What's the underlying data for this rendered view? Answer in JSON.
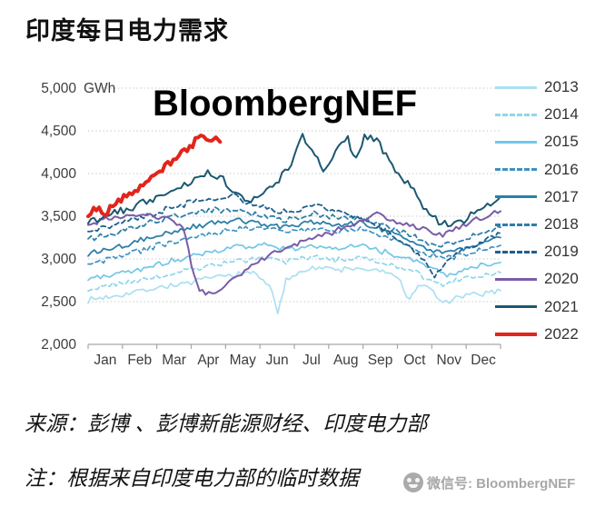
{
  "page": {
    "title": "印度每日电力需求",
    "chart_watermark": "BloombergNEF",
    "source_line": "来源：彭博 、彭博新能源财经、印度电力部",
    "note_line": "注：根据来自印度电力部的临时数据",
    "wechat_watermark": "微信号: BloombergNEF"
  },
  "colors": {
    "accent_red": "#e1251b",
    "grid": "#c9c9c9",
    "axis": "#a6a6a6",
    "title_text": "#111111",
    "tick_text": "#3d3d3d",
    "legend_text": "#333333",
    "watermark_gray": "#9b9b9b"
  },
  "chart_data": {
    "type": "line",
    "title": "印度每日电力需求",
    "unit": "GWh",
    "ylim": [
      2000,
      5000
    ],
    "yticks": [
      {
        "value": 5000,
        "label": "5,000"
      },
      {
        "value": 4500,
        "label": "4,500"
      },
      {
        "value": 4000,
        "label": "4,000"
      },
      {
        "value": 3500,
        "label": "3,500"
      },
      {
        "value": 3000,
        "label": "3,000"
      },
      {
        "value": 2500,
        "label": "2,500"
      },
      {
        "value": 2000,
        "label": "2,000"
      }
    ],
    "x_categories": [
      "Jan",
      "Feb",
      "Mar",
      "Apr",
      "May",
      "Jun",
      "Jul",
      "Aug",
      "Sep",
      "Oct",
      "Nov",
      "Dec"
    ],
    "grid": "horizontal-dotted",
    "legend_position": "right",
    "series": [
      {
        "name": "2013",
        "color": "#abdff2",
        "dash": false,
        "width": 1.7,
        "noise": 30,
        "points": [
          [
            0,
            2520
          ],
          [
            0.05,
            2560
          ],
          [
            0.1,
            2600
          ],
          [
            0.15,
            2650
          ],
          [
            0.2,
            2690
          ],
          [
            0.25,
            2720
          ],
          [
            0.3,
            2780
          ],
          [
            0.35,
            2810
          ],
          [
            0.4,
            2840
          ],
          [
            0.44,
            2700
          ],
          [
            0.46,
            2350
          ],
          [
            0.48,
            2750
          ],
          [
            0.52,
            2880
          ],
          [
            0.56,
            2900
          ],
          [
            0.6,
            2870
          ],
          [
            0.65,
            2890
          ],
          [
            0.7,
            2860
          ],
          [
            0.75,
            2800
          ],
          [
            0.78,
            2500
          ],
          [
            0.8,
            2700
          ],
          [
            0.83,
            2650
          ],
          [
            0.86,
            2480
          ],
          [
            0.9,
            2550
          ],
          [
            0.95,
            2590
          ],
          [
            1,
            2630
          ]
        ]
      },
      {
        "name": "2014",
        "color": "#8fd6ee",
        "dash": true,
        "width": 1.7,
        "noise": 28,
        "points": [
          [
            0,
            2640
          ],
          [
            0.06,
            2700
          ],
          [
            0.12,
            2740
          ],
          [
            0.18,
            2800
          ],
          [
            0.24,
            2870
          ],
          [
            0.3,
            2930
          ],
          [
            0.36,
            2980
          ],
          [
            0.42,
            3010
          ],
          [
            0.48,
            2970
          ],
          [
            0.54,
            3020
          ],
          [
            0.6,
            2990
          ],
          [
            0.66,
            3010
          ],
          [
            0.72,
            2950
          ],
          [
            0.78,
            2870
          ],
          [
            0.82,
            2780
          ],
          [
            0.86,
            2700
          ],
          [
            0.9,
            2760
          ],
          [
            0.95,
            2800
          ],
          [
            1,
            2840
          ]
        ]
      },
      {
        "name": "2015",
        "color": "#72c7e7",
        "dash": false,
        "width": 1.7,
        "noise": 30,
        "points": [
          [
            0,
            2760
          ],
          [
            0.06,
            2820
          ],
          [
            0.12,
            2880
          ],
          [
            0.18,
            2950
          ],
          [
            0.24,
            3020
          ],
          [
            0.3,
            3080
          ],
          [
            0.36,
            3140
          ],
          [
            0.42,
            3170
          ],
          [
            0.48,
            3110
          ],
          [
            0.54,
            3160
          ],
          [
            0.6,
            3130
          ],
          [
            0.66,
            3170
          ],
          [
            0.72,
            3080
          ],
          [
            0.78,
            3000
          ],
          [
            0.83,
            2900
          ],
          [
            0.87,
            2810
          ],
          [
            0.92,
            2890
          ],
          [
            1,
            2960
          ]
        ]
      },
      {
        "name": "2016",
        "color": "#3e92c0",
        "dash": true,
        "width": 1.7,
        "noise": 30,
        "points": [
          [
            0,
            2950
          ],
          [
            0.06,
            3010
          ],
          [
            0.12,
            3090
          ],
          [
            0.18,
            3170
          ],
          [
            0.24,
            3240
          ],
          [
            0.3,
            3300
          ],
          [
            0.36,
            3350
          ],
          [
            0.42,
            3370
          ],
          [
            0.48,
            3310
          ],
          [
            0.54,
            3360
          ],
          [
            0.6,
            3320
          ],
          [
            0.66,
            3340
          ],
          [
            0.72,
            3260
          ],
          [
            0.78,
            3160
          ],
          [
            0.83,
            3040
          ],
          [
            0.88,
            3010
          ],
          [
            0.94,
            3090
          ],
          [
            1,
            3160
          ]
        ]
      },
      {
        "name": "2017",
        "color": "#2e7fa8",
        "dash": false,
        "width": 1.8,
        "noise": 30,
        "points": [
          [
            0,
            3060
          ],
          [
            0.06,
            3130
          ],
          [
            0.12,
            3210
          ],
          [
            0.18,
            3290
          ],
          [
            0.24,
            3360
          ],
          [
            0.3,
            3420
          ],
          [
            0.36,
            3460
          ],
          [
            0.42,
            3410
          ],
          [
            0.48,
            3370
          ],
          [
            0.54,
            3430
          ],
          [
            0.6,
            3400
          ],
          [
            0.66,
            3420
          ],
          [
            0.72,
            3330
          ],
          [
            0.78,
            3220
          ],
          [
            0.83,
            3110
          ],
          [
            0.88,
            3080
          ],
          [
            0.94,
            3170
          ],
          [
            1,
            3250
          ]
        ]
      },
      {
        "name": "2018",
        "color": "#2e7fa8",
        "dash": true,
        "width": 1.8,
        "noise": 32,
        "points": [
          [
            0,
            3230
          ],
          [
            0.06,
            3300
          ],
          [
            0.12,
            3380
          ],
          [
            0.18,
            3460
          ],
          [
            0.24,
            3530
          ],
          [
            0.3,
            3570
          ],
          [
            0.36,
            3590
          ],
          [
            0.42,
            3500
          ],
          [
            0.48,
            3460
          ],
          [
            0.54,
            3530
          ],
          [
            0.6,
            3480
          ],
          [
            0.66,
            3490
          ],
          [
            0.7,
            3400
          ],
          [
            0.75,
            3330
          ],
          [
            0.8,
            3240
          ],
          [
            0.85,
            3140
          ],
          [
            0.9,
            3230
          ],
          [
            0.95,
            3300
          ],
          [
            1,
            3370
          ]
        ]
      },
      {
        "name": "2019",
        "color": "#1f5f8b",
        "dash": true,
        "width": 1.8,
        "noise": 32,
        "points": [
          [
            0,
            3330
          ],
          [
            0.06,
            3390
          ],
          [
            0.12,
            3470
          ],
          [
            0.18,
            3560
          ],
          [
            0.24,
            3650
          ],
          [
            0.3,
            3700
          ],
          [
            0.36,
            3730
          ],
          [
            0.4,
            3640
          ],
          [
            0.45,
            3580
          ],
          [
            0.5,
            3540
          ],
          [
            0.55,
            3620
          ],
          [
            0.6,
            3560
          ],
          [
            0.65,
            3500
          ],
          [
            0.7,
            3390
          ],
          [
            0.75,
            3230
          ],
          [
            0.8,
            3060
          ],
          [
            0.84,
            2800
          ],
          [
            0.87,
            2980
          ],
          [
            0.9,
            3090
          ],
          [
            0.95,
            3190
          ],
          [
            1,
            3300
          ]
        ]
      },
      {
        "name": "2020",
        "color": "#7a5ca8",
        "dash": false,
        "width": 2,
        "noise": 30,
        "points": [
          [
            0,
            3410
          ],
          [
            0.05,
            3470
          ],
          [
            0.1,
            3530
          ],
          [
            0.15,
            3500
          ],
          [
            0.2,
            3450
          ],
          [
            0.23,
            3380
          ],
          [
            0.25,
            2950
          ],
          [
            0.27,
            2620
          ],
          [
            0.3,
            2600
          ],
          [
            0.34,
            2720
          ],
          [
            0.38,
            2860
          ],
          [
            0.42,
            2990
          ],
          [
            0.46,
            3090
          ],
          [
            0.5,
            3170
          ],
          [
            0.55,
            3250
          ],
          [
            0.6,
            3330
          ],
          [
            0.65,
            3430
          ],
          [
            0.7,
            3520
          ],
          [
            0.74,
            3440
          ],
          [
            0.78,
            3400
          ],
          [
            0.82,
            3350
          ],
          [
            0.86,
            3290
          ],
          [
            0.9,
            3370
          ],
          [
            0.95,
            3470
          ],
          [
            1,
            3560
          ]
        ]
      },
      {
        "name": "2021",
        "color": "#1b5871",
        "dash": false,
        "width": 2,
        "noise": 42,
        "points": [
          [
            0,
            3460
          ],
          [
            0.05,
            3520
          ],
          [
            0.1,
            3590
          ],
          [
            0.15,
            3690
          ],
          [
            0.2,
            3790
          ],
          [
            0.25,
            3900
          ],
          [
            0.29,
            4000
          ],
          [
            0.32,
            3980
          ],
          [
            0.35,
            3820
          ],
          [
            0.38,
            3680
          ],
          [
            0.41,
            3700
          ],
          [
            0.44,
            3820
          ],
          [
            0.47,
            3960
          ],
          [
            0.5,
            4180
          ],
          [
            0.52,
            4440
          ],
          [
            0.55,
            4230
          ],
          [
            0.57,
            4020
          ],
          [
            0.6,
            4280
          ],
          [
            0.63,
            4400
          ],
          [
            0.65,
            4160
          ],
          [
            0.67,
            4430
          ],
          [
            0.7,
            4400
          ],
          [
            0.73,
            4150
          ],
          [
            0.76,
            3950
          ],
          [
            0.79,
            3780
          ],
          [
            0.82,
            3570
          ],
          [
            0.85,
            3440
          ],
          [
            0.88,
            3390
          ],
          [
            0.92,
            3480
          ],
          [
            0.96,
            3600
          ],
          [
            1,
            3730
          ]
        ]
      },
      {
        "name": "2022",
        "color": "#e1251b",
        "dash": false,
        "width": 4,
        "noise": 40,
        "points": [
          [
            0,
            3520
          ],
          [
            0.02,
            3610
          ],
          [
            0.04,
            3500
          ],
          [
            0.06,
            3640
          ],
          [
            0.08,
            3700
          ],
          [
            0.1,
            3750
          ],
          [
            0.12,
            3810
          ],
          [
            0.14,
            3880
          ],
          [
            0.16,
            3950
          ],
          [
            0.18,
            4040
          ],
          [
            0.2,
            4130
          ],
          [
            0.22,
            4210
          ],
          [
            0.24,
            4290
          ],
          [
            0.26,
            4380
          ],
          [
            0.28,
            4450
          ],
          [
            0.3,
            4390
          ],
          [
            0.31,
            4440
          ],
          [
            0.32,
            4370
          ]
        ]
      }
    ]
  }
}
